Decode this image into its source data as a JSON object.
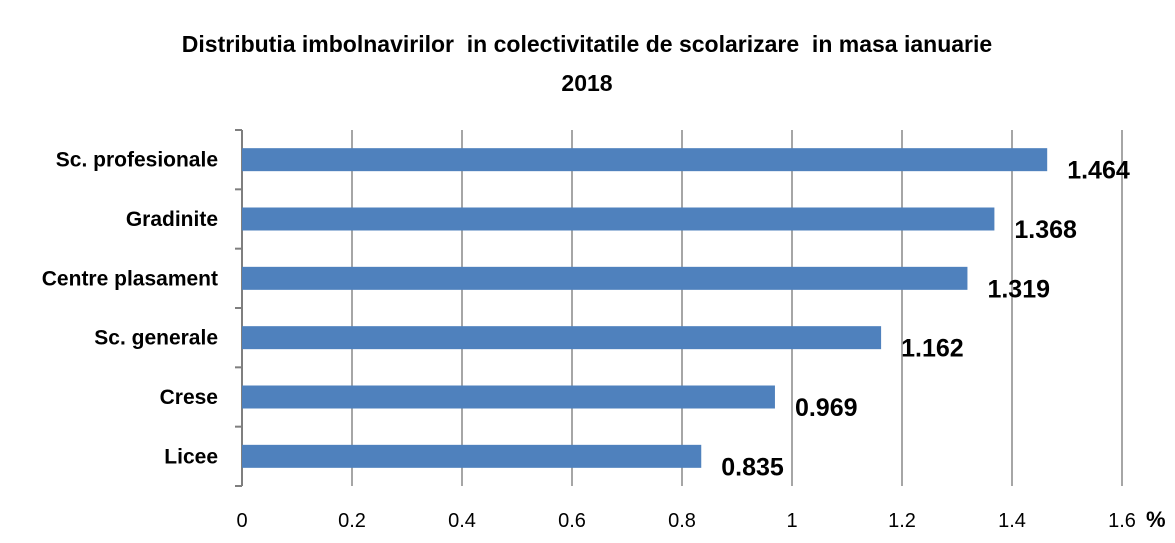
{
  "chart_data": {
    "type": "bar",
    "orientation": "horizontal",
    "title": "Distributia imbolnavirilor  in colectivitatile de scolarizare  in masa ianuarie",
    "title_line2": "2018",
    "categories": [
      "Sc. profesionale",
      "Gradinite",
      "Centre plasament",
      "Sc. generale",
      "Crese",
      "Licee"
    ],
    "values": [
      1.464,
      1.368,
      1.319,
      1.162,
      0.969,
      0.835
    ],
    "data_labels": [
      "1.464",
      "1.368",
      "1.319",
      "1.162",
      "0.969",
      "0.835"
    ],
    "x_ticks": [
      "0",
      "0.2",
      "0.4",
      "0.6",
      "0.8",
      "1",
      "1.2",
      "1.4",
      "1.6"
    ],
    "x_unit": "%",
    "xlim": [
      0,
      1.6
    ],
    "grid": "vertical",
    "legend": "none",
    "bar_color": "#4F81BD",
    "grid_color": "#A6A6A6"
  }
}
